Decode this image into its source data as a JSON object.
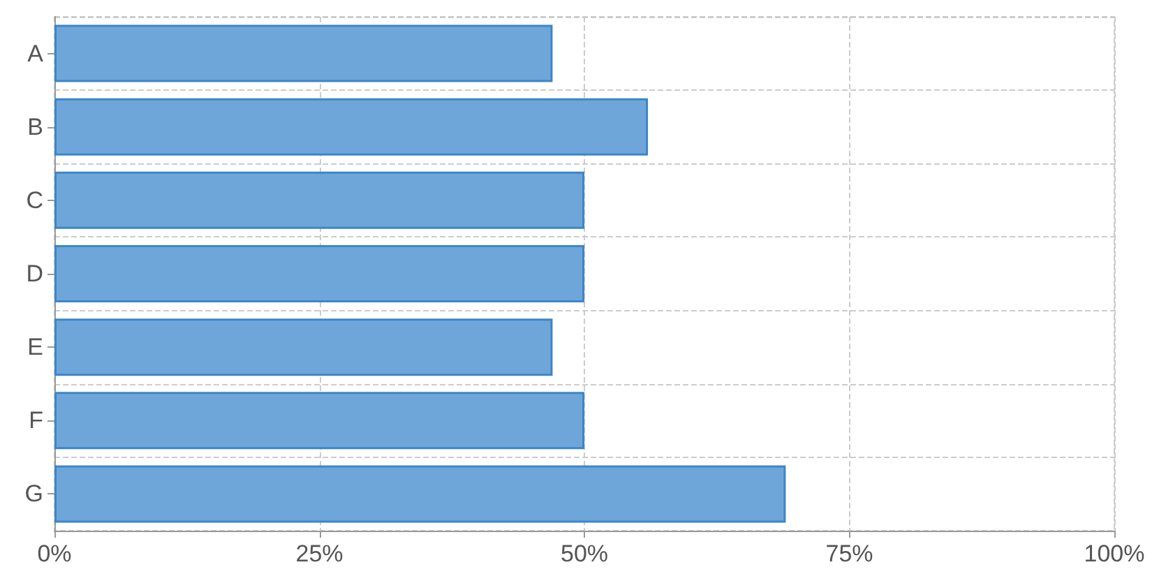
{
  "chart_data": {
    "type": "bar",
    "orientation": "horizontal",
    "categories": [
      "A",
      "B",
      "C",
      "D",
      "E",
      "F",
      "G"
    ],
    "values": [
      47,
      56,
      50,
      50,
      47,
      50,
      69
    ],
    "color": "#6fa6d9",
    "xlim": [
      0,
      100
    ],
    "xticks": [
      {
        "value": 0,
        "label": "0%"
      },
      {
        "value": 25,
        "label": "25%"
      },
      {
        "value": 50,
        "label": "50%"
      },
      {
        "value": 75,
        "label": "75%"
      },
      {
        "value": 100,
        "label": "100%"
      }
    ],
    "grid": true
  }
}
